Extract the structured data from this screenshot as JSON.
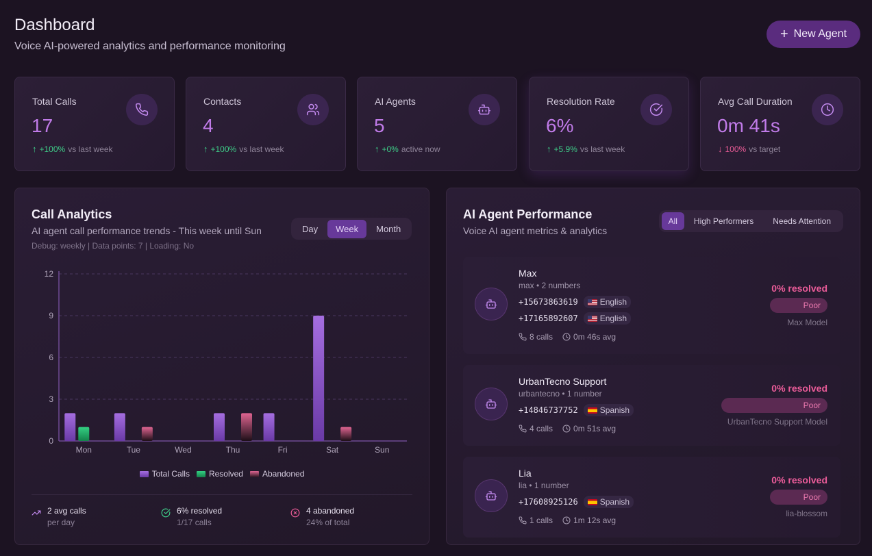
{
  "header": {
    "title": "Dashboard",
    "subtitle": "Voice AI-powered analytics and performance monitoring",
    "new_agent_label": "New Agent"
  },
  "stats": [
    {
      "label": "Total Calls",
      "value": "17",
      "trend_value": "+100%",
      "trend_text": "vs last week",
      "direction": "up",
      "icon": "phone-icon"
    },
    {
      "label": "Contacts",
      "value": "4",
      "trend_value": "+100%",
      "trend_text": "vs last week",
      "direction": "up",
      "icon": "users-icon"
    },
    {
      "label": "AI Agents",
      "value": "5",
      "trend_value": "+0%",
      "trend_text": "active now",
      "direction": "up",
      "icon": "bot-icon"
    },
    {
      "label": "Resolution Rate",
      "value": "6%",
      "trend_value": "+5.9%",
      "trend_text": "vs last week",
      "direction": "up",
      "icon": "check-circle-icon"
    },
    {
      "label": "Avg Call Duration",
      "value": "0m 41s",
      "trend_value": "100%",
      "trend_text": "vs target",
      "direction": "down",
      "icon": "clock-icon"
    }
  ],
  "call_analytics": {
    "title": "Call Analytics",
    "subtitle": "AI agent call performance trends - This week until Sun",
    "debug": "Debug: weekly | Data points: 7 | Loading: No",
    "periods": [
      "Day",
      "Week",
      "Month"
    ],
    "active_period": "Week",
    "footer": {
      "avg_main": "2 avg calls",
      "avg_sub": "per day",
      "resolved_main": "6% resolved",
      "resolved_sub": "1/17 calls",
      "abandoned_main": "4 abandoned",
      "abandoned_sub": "24% of total"
    }
  },
  "chart_data": {
    "type": "bar",
    "title": "Call Analytics",
    "categories": [
      "Mon",
      "Tue",
      "Wed",
      "Thu",
      "Fri",
      "Sat",
      "Sun"
    ],
    "series": [
      {
        "name": "Total Calls",
        "values": [
          2,
          2,
          0,
          2,
          2,
          9,
          0
        ]
      },
      {
        "name": "Resolved",
        "values": [
          1,
          0,
          0,
          0,
          0,
          0,
          0
        ]
      },
      {
        "name": "Abandoned",
        "values": [
          0,
          1,
          0,
          2,
          0,
          1,
          0
        ]
      }
    ],
    "yticks": [
      "0",
      "3",
      "6",
      "9",
      "12"
    ],
    "ylim": [
      0,
      12
    ],
    "grid": true,
    "legend": "bottom",
    "colors": {
      "total": "#8b4fcf",
      "resolved": "#22b86e",
      "abandoned": "#d2507f"
    }
  },
  "agent_performance": {
    "title": "AI Agent Performance",
    "subtitle": "Voice AI agent metrics & analytics",
    "filters": [
      "All",
      "High Performers",
      "Needs Attention"
    ],
    "active_filter": "All",
    "agents": [
      {
        "name": "Max",
        "meta": "max • 2 numbers",
        "phones": [
          {
            "number": "+15673863619",
            "lang": "English",
            "flag": "us"
          },
          {
            "number": "+17165892607",
            "lang": "English",
            "flag": "us"
          }
        ],
        "calls": "8 calls",
        "avg": "0m 46s avg",
        "resolved": "0% resolved",
        "rating": "Poor",
        "model": "Max Model"
      },
      {
        "name": "UrbanTecno Support",
        "meta": "urbantecno • 1 number",
        "phones": [
          {
            "number": "+14846737752",
            "lang": "Spanish",
            "flag": "es"
          }
        ],
        "calls": "4 calls",
        "avg": "0m 51s avg",
        "resolved": "0% resolved",
        "rating": "Poor",
        "model": "UrbanTecno Support Model"
      },
      {
        "name": "Lia",
        "meta": "lia • 1 number",
        "phones": [
          {
            "number": "+17608925126",
            "lang": "Spanish",
            "flag": "es"
          }
        ],
        "calls": "1 calls",
        "avg": "1m 12s avg",
        "resolved": "0% resolved",
        "rating": "Poor",
        "model": "lia-blossom"
      }
    ]
  }
}
